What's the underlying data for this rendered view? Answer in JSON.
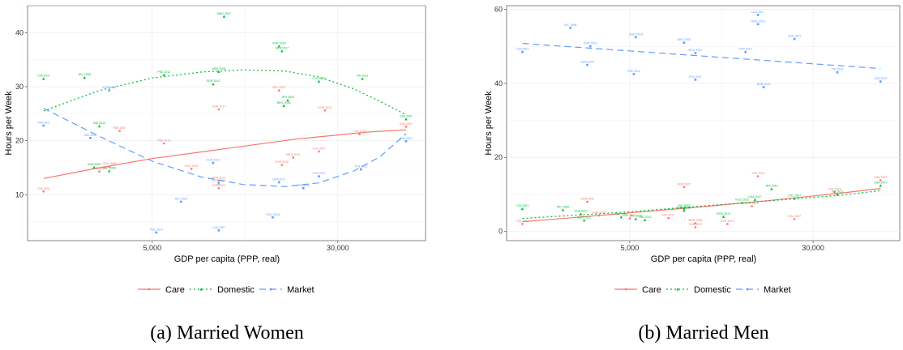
{
  "colors": {
    "Care": "#F8766D",
    "Domestic": "#00BA38",
    "Market": "#619CFF",
    "grid": "#EBEBEB",
    "frame": "#333333"
  },
  "legend": {
    "items": [
      {
        "name": "Care",
        "color": "#F8766D",
        "dash": "none",
        "marker": "circle"
      },
      {
        "name": "Domestic",
        "color": "#00BA38",
        "dash": "2,3",
        "marker": "triangle"
      },
      {
        "name": "Market",
        "color": "#619CFF",
        "dash": "8,5",
        "marker": "square"
      }
    ]
  },
  "chart_data": [
    {
      "type": "scatter",
      "caption": "(a) Married Women",
      "xlabel": "GDP per capita (PPP, real)",
      "ylabel": "Hours per Week",
      "x_scale": "log",
      "xlim": [
        1500,
        70000
      ],
      "ylim": [
        1.5,
        45
      ],
      "x_ticks": [
        5000,
        30000
      ],
      "x_tick_labels": [
        "5,000",
        "30,000"
      ],
      "y_ticks": [
        10,
        20,
        30,
        40
      ],
      "grid": true,
      "legend_position": "bottom",
      "series": [
        {
          "name": "Care",
          "points": [
            {
              "label": "TZA 2001",
              "x": 1750,
              "y": 10.6
            },
            {
              "label": "IND 2019",
              "x": 3000,
              "y": 14.3
            },
            {
              "label": "GHA 2009",
              "x": 3300,
              "y": 15.2
            },
            {
              "label": "PAK 2007",
              "x": 3650,
              "y": 21.8
            },
            {
              "label": "PSE 2012",
              "x": 5600,
              "y": 19.5
            },
            {
              "label": "KGZ 2015",
              "x": 7300,
              "y": 14.8
            },
            {
              "label": "BGR 2012",
              "x": 9500,
              "y": 12.6
            },
            {
              "label": "SGR 2001",
              "x": 9500,
              "y": 11.2
            },
            {
              "label": "SGR 2017",
              "x": 9500,
              "y": 25.8
            },
            {
              "label": "URY 2013",
              "x": 17000,
              "y": 29.3
            },
            {
              "label": "MEX 2014",
              "x": 19500,
              "y": 16.9
            },
            {
              "label": "CHE 2016",
              "x": 17500,
              "y": 15.5
            },
            {
              "label": "KOR 2014",
              "x": 26500,
              "y": 25.6
            },
            {
              "label": "CHL 2007",
              "x": 25000,
              "y": 18.0
            },
            {
              "label": "TCE 2015",
              "x": 37000,
              "y": 21.2
            },
            {
              "label": "USA 2007",
              "x": 58000,
              "y": 22.6
            }
          ],
          "fit": {
            "x": [
              1750,
              3000,
              5000,
              10000,
              20000,
              40000,
              58000
            ],
            "y": [
              13.0,
              15.0,
              16.7,
              18.5,
              20.3,
              21.6,
              22.0
            ]
          }
        },
        {
          "name": "Domestic",
          "points": [
            {
              "label": "TZA 2001",
              "x": 1750,
              "y": 31.5
            },
            {
              "label": "NIC 1998",
              "x": 2600,
              "y": 31.7
            },
            {
              "label": "IND 2019",
              "x": 3000,
              "y": 22.7
            },
            {
              "label": "GHA 2009",
              "x": 2850,
              "y": 15.1
            },
            {
              "label": "PAK 2008",
              "x": 3300,
              "y": 14.4
            },
            {
              "label": "PSE 2012",
              "x": 5600,
              "y": 32.2
            },
            {
              "label": "SGR 2012",
              "x": 9000,
              "y": 30.5
            },
            {
              "label": "MNG 2007",
              "x": 10000,
              "y": 43.0
            },
            {
              "label": "ARM 2008",
              "x": 9500,
              "y": 32.8
            },
            {
              "label": "VGR 2016",
              "x": 17000,
              "y": 37.5
            },
            {
              "label": "UKR 2017",
              "x": 17500,
              "y": 36.6
            },
            {
              "label": "JPN 2016",
              "x": 18500,
              "y": 27.5
            },
            {
              "label": "BRG 2016",
              "x": 17800,
              "y": 26.5
            },
            {
              "label": "CHL 2007",
              "x": 25000,
              "y": 31.0
            },
            {
              "label": "ITA 2013",
              "x": 38000,
              "y": 31.5
            },
            {
              "label": "USA 2007",
              "x": 58000,
              "y": 24.0
            }
          ],
          "fit": {
            "x": [
              1750,
              3000,
              5000,
              8000,
              12000,
              18000,
              25000,
              35000,
              45000,
              58000
            ],
            "y": [
              25.5,
              29.3,
              31.6,
              32.7,
              33.1,
              32.9,
              31.8,
              29.6,
              27.3,
              24.8
            ]
          }
        },
        {
          "name": "Market",
          "points": [
            {
              "label": "TZA 2001",
              "x": 1750,
              "y": 22.8
            },
            {
              "label": "IND 2019",
              "x": 2750,
              "y": 20.5
            },
            {
              "label": "KOR 2019",
              "x": 3300,
              "y": 29.3
            },
            {
              "label": "NIC 2016",
              "x": 6600,
              "y": 8.7
            },
            {
              "label": "PSE 2013",
              "x": 5200,
              "y": 3.0
            },
            {
              "label": "GUR 2013",
              "x": 9000,
              "y": 15.9
            },
            {
              "label": "KGZ 2012",
              "x": 9500,
              "y": 12.1
            },
            {
              "label": "LGA 2007",
              "x": 9500,
              "y": 3.4
            },
            {
              "label": "CGU 2015",
              "x": 16000,
              "y": 5.8
            },
            {
              "label": "USA 2017",
              "x": 17000,
              "y": 12.3
            },
            {
              "label": "JPN 2016",
              "x": 21500,
              "y": 11.2
            },
            {
              "label": "CHL 2007",
              "x": 25000,
              "y": 13.4
            },
            {
              "label": "TTA 2013",
              "x": 37500,
              "y": 14.7
            },
            {
              "label": "USA 2007",
              "x": 58000,
              "y": 19.9
            }
          ],
          "fit": {
            "x": [
              1750,
              3000,
              5000,
              8000,
              12000,
              18000,
              25000,
              35000,
              45000,
              58000
            ],
            "y": [
              26.0,
              20.8,
              16.2,
              13.3,
              11.9,
              11.5,
              12.2,
              14.4,
              17.0,
              21.3
            ]
          }
        }
      ]
    },
    {
      "type": "scatter",
      "caption": "(b) Married Men",
      "xlabel": "GDP per capita (PPP, real)",
      "ylabel": "Hours per Week",
      "x_scale": "log",
      "xlim": [
        1500,
        70000
      ],
      "ylim": [
        -2.5,
        61
      ],
      "x_ticks": [
        5000,
        30000
      ],
      "x_tick_labels": [
        "5,000",
        "30,000"
      ],
      "y_ticks": [
        0,
        20,
        40,
        60
      ],
      "grid": true,
      "legend_position": "bottom",
      "series": [
        {
          "name": "Care",
          "points": [
            {
              "label": "TZA 2001",
              "x": 1750,
              "y": 2.0
            },
            {
              "label": "GHA 2009",
              "x": 3300,
              "y": 8.0
            },
            {
              "label": "KOR 2019",
              "x": 3700,
              "y": 4.3
            },
            {
              "label": "PAK 2007",
              "x": 5000,
              "y": 3.5
            },
            {
              "label": "NIC 2017",
              "x": 7300,
              "y": 3.6
            },
            {
              "label": "RGR 2007",
              "x": 8500,
              "y": 12.0
            },
            {
              "label": "BGR 2008",
              "x": 9500,
              "y": 2.2
            },
            {
              "label": "SGR 2017",
              "x": 9500,
              "y": 1.1
            },
            {
              "label": "KGZ 2013",
              "x": 13000,
              "y": 2.0
            },
            {
              "label": "UKR 2012",
              "x": 16500,
              "y": 6.8
            },
            {
              "label": "TSK 2016",
              "x": 17500,
              "y": 14.9
            },
            {
              "label": "CHL 2007",
              "x": 25000,
              "y": 3.3
            },
            {
              "label": "TCE 2015",
              "x": 37000,
              "y": 10.6
            },
            {
              "label": "USA 2007",
              "x": 58000,
              "y": 13.8
            }
          ],
          "fit": {
            "x": [
              1750,
              3000,
              5000,
              10000,
              20000,
              40000,
              58000
            ],
            "y": [
              2.6,
              3.8,
              5.0,
              6.6,
              8.4,
              10.4,
              11.6
            ]
          }
        },
        {
          "name": "Domestic",
          "points": [
            {
              "label": "TZA 2001",
              "x": 1750,
              "y": 6.1
            },
            {
              "label": "NIC 1998",
              "x": 2600,
              "y": 5.8
            },
            {
              "label": "GHA 2010",
              "x": 3100,
              "y": 4.7
            },
            {
              "label": "BGR 2013",
              "x": 3200,
              "y": 3.0
            },
            {
              "label": "PAK 2007",
              "x": 4600,
              "y": 3.9
            },
            {
              "label": "NIC 2016",
              "x": 5300,
              "y": 3.4
            },
            {
              "label": "TSE 2013",
              "x": 5800,
              "y": 3.1
            },
            {
              "label": "IRQ 2007",
              "x": 8500,
              "y": 6.2
            },
            {
              "label": "ARM 2008",
              "x": 8500,
              "y": 5.6
            },
            {
              "label": "ROK 2013",
              "x": 12500,
              "y": 4.0
            },
            {
              "label": "USA 2017",
              "x": 17000,
              "y": 8.6
            },
            {
              "label": "KGZ 2015",
              "x": 15000,
              "y": 7.8
            },
            {
              "label": "JPN 2016",
              "x": 20000,
              "y": 11.5
            },
            {
              "label": "CHL 2007",
              "x": 25000,
              "y": 8.9
            },
            {
              "label": "ITA 2013",
              "x": 38000,
              "y": 10.0
            },
            {
              "label": "USA 2007",
              "x": 58000,
              "y": 12.4
            }
          ],
          "fit": {
            "x": [
              1750,
              3000,
              5000,
              10000,
              20000,
              40000,
              58000
            ],
            "y": [
              3.5,
              4.4,
              5.3,
              6.8,
              8.3,
              9.8,
              11.0
            ]
          }
        },
        {
          "name": "Market",
          "points": [
            {
              "label": "TZA 2001",
              "x": 1750,
              "y": 48.5
            },
            {
              "label": "NIC 1998",
              "x": 2800,
              "y": 55.0
            },
            {
              "label": "KOR 2019",
              "x": 3400,
              "y": 50.0
            },
            {
              "label": "GHA 2009",
              "x": 3300,
              "y": 45.0
            },
            {
              "label": "SGR 2018",
              "x": 5300,
              "y": 52.5
            },
            {
              "label": "PSE 2012",
              "x": 5200,
              "y": 42.5
            },
            {
              "label": "BRG 2008",
              "x": 8500,
              "y": 51.0
            },
            {
              "label": "BGU 2007",
              "x": 9500,
              "y": 48.2
            },
            {
              "label": "IRQ 2007",
              "x": 9500,
              "y": 41.0
            },
            {
              "label": "LKA 2017",
              "x": 17500,
              "y": 58.5
            },
            {
              "label": "MNG 2016",
              "x": 17500,
              "y": 56.0
            },
            {
              "label": "ZFR 2013",
              "x": 15500,
              "y": 48.5
            },
            {
              "label": "URB 2015",
              "x": 18500,
              "y": 39.0
            },
            {
              "label": "CHE 2007",
              "x": 25000,
              "y": 52.0
            },
            {
              "label": "ITA 2015",
              "x": 38000,
              "y": 43.0
            },
            {
              "label": "USA 2007",
              "x": 58000,
              "y": 40.5
            }
          ],
          "fit": {
            "x": [
              1750,
              58000
            ],
            "y": [
              50.8,
              44.0
            ]
          }
        }
      ]
    }
  ]
}
